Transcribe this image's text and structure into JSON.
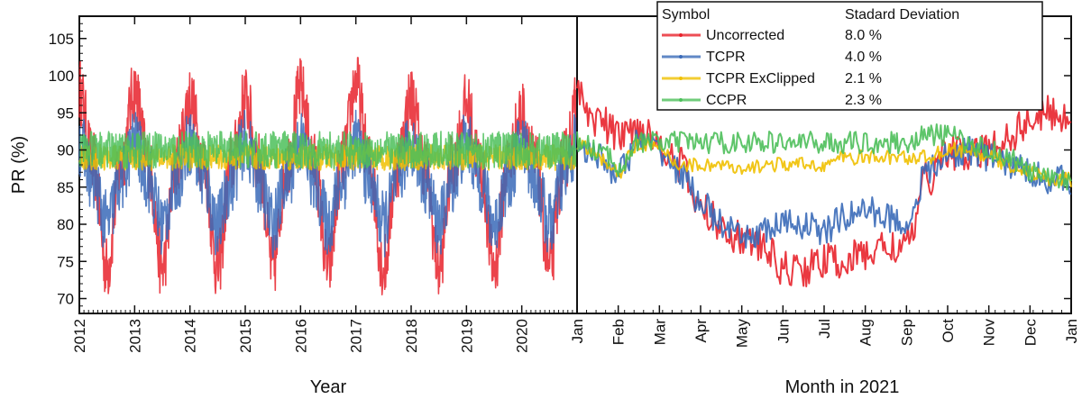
{
  "chart_data": [
    {
      "type": "line",
      "panel": "left",
      "xlabel": "Year",
      "ylabel": "PR (%)",
      "ylim": [
        68,
        108
      ],
      "xlim": [
        2012,
        2021
      ],
      "x_ticks": [
        "2012",
        "2013",
        "2014",
        "2015",
        "2016",
        "2017",
        "2018",
        "2019",
        "2020"
      ],
      "y_ticks": [
        70,
        75,
        80,
        85,
        90,
        95,
        100,
        105
      ],
      "grid": false,
      "series": [
        {
          "name": "Uncorrected",
          "pattern": "seasonal",
          "color": "#e8222b",
          "x": [
            2012.0,
            2012.25,
            2012.5,
            2012.75,
            2013.0,
            2013.25,
            2013.5,
            2013.75,
            2014.0,
            2014.25,
            2014.5,
            2014.75,
            2015.0,
            2015.25,
            2015.5,
            2015.75,
            2016.0,
            2016.25,
            2016.5,
            2016.75,
            2017.0,
            2017.25,
            2017.5,
            2017.75,
            2018.0,
            2018.25,
            2018.5,
            2018.75,
            2019.0,
            2019.25,
            2019.5,
            2019.75,
            2020.0,
            2020.25,
            2020.5,
            2020.75,
            2021.0
          ],
          "y": [
            98,
            88,
            74,
            88,
            98,
            88,
            74,
            88,
            97,
            88,
            74,
            88,
            97,
            88,
            74,
            88,
            98,
            88,
            74,
            88,
            99,
            88,
            74,
            88,
            97,
            88,
            74,
            88,
            96,
            88,
            74,
            88,
            95,
            88,
            74,
            88,
            96
          ]
        },
        {
          "name": "TCPR",
          "pattern": "seasonal",
          "color": "#3a6ab8",
          "x": [
            2012.0,
            2012.25,
            2012.5,
            2012.75,
            2013.0,
            2013.25,
            2013.5,
            2013.75,
            2014.0,
            2014.25,
            2014.5,
            2014.75,
            2015.0,
            2015.25,
            2015.5,
            2015.75,
            2016.0,
            2016.25,
            2016.5,
            2016.75,
            2017.0,
            2017.25,
            2017.5,
            2017.75,
            2018.0,
            2018.25,
            2018.5,
            2018.75,
            2019.0,
            2019.25,
            2019.5,
            2019.75,
            2020.0,
            2020.25,
            2020.5,
            2020.75,
            2021.0
          ],
          "y": [
            91,
            86,
            80,
            86,
            91,
            86,
            80,
            86,
            91,
            86,
            80,
            86,
            91,
            86,
            80,
            86,
            91,
            86,
            80,
            86,
            91,
            86,
            80,
            86,
            91,
            86,
            80,
            86,
            91,
            86,
            80,
            86,
            91,
            86,
            80,
            86,
            91
          ]
        },
        {
          "name": "TCPR ExClipped",
          "pattern": "flat",
          "color": "#f0c000",
          "x": [
            2012.0,
            2013.0,
            2014.0,
            2015.0,
            2016.0,
            2017.0,
            2018.0,
            2019.0,
            2020.0,
            2021.0
          ],
          "y": [
            89,
            89,
            89,
            89,
            89,
            89,
            89,
            89,
            89,
            89
          ]
        },
        {
          "name": "CCPR",
          "pattern": "flat",
          "color": "#4cbf5a",
          "x": [
            2012.0,
            2013.0,
            2014.0,
            2015.0,
            2016.0,
            2017.0,
            2018.0,
            2019.0,
            2020.0,
            2021.0
          ],
          "y": [
            90,
            90,
            90,
            90,
            90,
            90,
            90,
            90,
            90,
            90
          ]
        }
      ]
    },
    {
      "type": "line",
      "panel": "right",
      "xlabel": "Month in 2021",
      "ylabel": "",
      "ylim": [
        68,
        108
      ],
      "xlim": [
        1,
        13
      ],
      "x_ticks": [
        "Jan",
        "Feb",
        "Mar",
        "Apr",
        "May",
        "Jun",
        "Jul",
        "Aug",
        "Sep",
        "Oct",
        "Nov",
        "Dec",
        "Jan"
      ],
      "grid": false,
      "series": [
        {
          "name": "Uncorrected",
          "color": "#e8222b",
          "x": [
            1.0,
            1.5,
            2.0,
            2.5,
            3.0,
            3.5,
            4.0,
            4.5,
            5.0,
            5.5,
            6.0,
            6.5,
            7.0,
            7.5,
            8.0,
            8.5,
            9.0,
            9.5,
            10.0,
            10.5,
            11.0,
            11.5,
            12.0,
            12.5,
            13.0
          ],
          "y": [
            97,
            94,
            92,
            93,
            91,
            88,
            82,
            80,
            78,
            77,
            74,
            74,
            75,
            75,
            76,
            77,
            77,
            86,
            90,
            89,
            90,
            92,
            94,
            95,
            94
          ]
        },
        {
          "name": "TCPR",
          "color": "#3a6ab8",
          "x": [
            1.0,
            1.5,
            2.0,
            2.5,
            3.0,
            3.5,
            4.0,
            4.5,
            5.0,
            5.5,
            6.0,
            6.5,
            7.0,
            7.5,
            8.0,
            8.5,
            9.0,
            9.5,
            10.0,
            10.5,
            11.0,
            11.5,
            12.0,
            12.5,
            13.0
          ],
          "y": [
            91,
            89,
            87,
            91,
            90,
            87,
            83,
            80,
            78,
            79,
            80,
            80,
            79,
            81,
            82,
            81,
            80,
            87,
            89,
            90,
            89,
            88,
            87,
            86,
            86
          ]
        },
        {
          "name": "TCPR ExClipped",
          "color": "#f0c000",
          "x": [
            1.0,
            1.5,
            2.0,
            2.5,
            3.0,
            3.5,
            4.0,
            4.5,
            5.0,
            5.5,
            6.0,
            6.5,
            7.0,
            7.5,
            8.0,
            8.5,
            9.0,
            9.5,
            10.0,
            10.5,
            11.0,
            11.5,
            12.0,
            12.5,
            13.0
          ],
          "y": [
            91,
            89,
            87,
            91,
            90,
            88,
            88,
            88,
            87,
            88,
            88,
            88,
            88,
            89,
            89,
            89,
            89,
            89,
            90,
            90,
            89,
            88,
            87,
            86,
            86
          ]
        },
        {
          "name": "CCPR",
          "color": "#4cbf5a",
          "x": [
            1.0,
            1.5,
            2.0,
            2.5,
            3.0,
            3.5,
            4.0,
            4.5,
            5.0,
            5.5,
            6.0,
            6.5,
            7.0,
            7.5,
            8.0,
            8.5,
            9.0,
            9.5,
            10.0,
            10.5,
            11.0,
            11.5,
            12.0,
            12.5,
            13.0
          ],
          "y": [
            91,
            90,
            88,
            91,
            91,
            91,
            91,
            91,
            91,
            91,
            91,
            91,
            91,
            91,
            91,
            91,
            91,
            92,
            92,
            91,
            90,
            89,
            87,
            86,
            86
          ]
        }
      ]
    }
  ],
  "legend": {
    "header_symbol": "Symbol",
    "header_std": "Stadard Deviation",
    "entries": [
      {
        "label": "Uncorrected",
        "std": "8.0 %",
        "color": "#e8222b"
      },
      {
        "label": "TCPR",
        "std": "4.0 %",
        "color": "#3a6ab8"
      },
      {
        "label": "TCPR ExClipped",
        "std": "2.1 %",
        "color": "#f0c000"
      },
      {
        "label": "CCPR",
        "std": "2.3 %",
        "color": "#4cbf5a"
      }
    ]
  }
}
